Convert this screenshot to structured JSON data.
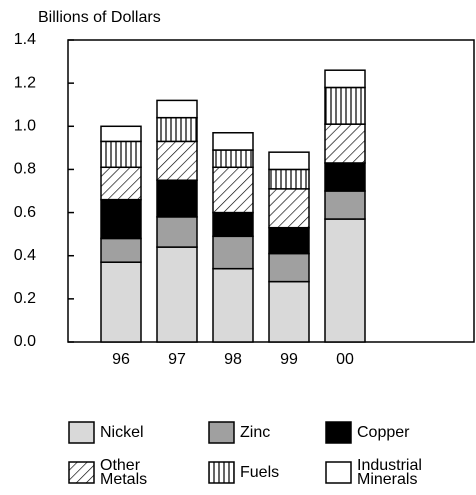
{
  "chart_data": {
    "type": "stacked_bar",
    "y_label": "Billions of Dollars",
    "categories": [
      "96",
      "97",
      "98",
      "99",
      "00"
    ],
    "ylim": [
      0,
      1.4
    ],
    "yticks": [
      {
        "value": 0,
        "label": "0.0"
      },
      0.2,
      0.4,
      0.6,
      0.8,
      {
        "value": 1,
        "label": "1.0"
      },
      1.2,
      1.4
    ],
    "series": [
      {
        "name": "Nickel",
        "color": "#d9d9d9",
        "pattern": "solid",
        "values": [
          0.37,
          0.44,
          0.34,
          0.28,
          0.57
        ]
      },
      {
        "name": "Zinc",
        "color": "#a0a0a0",
        "pattern": "solid",
        "values": [
          0.11,
          0.14,
          0.15,
          0.13,
          0.13
        ]
      },
      {
        "name": "Copper",
        "color": "#000000",
        "pattern": "solid",
        "values": [
          0.18,
          0.17,
          0.11,
          0.12,
          0.13
        ]
      },
      {
        "name": "Other Metals",
        "color": "#ffffff",
        "pattern": "diagonal",
        "values": [
          0.15,
          0.18,
          0.21,
          0.18,
          0.18
        ]
      },
      {
        "name": "Fuels",
        "color": "#ffffff",
        "pattern": "vertical",
        "values": [
          0.12,
          0.11,
          0.08,
          0.09,
          0.17
        ]
      },
      {
        "name": "Industrial Minerals",
        "color": "#ffffff",
        "pattern": "solid",
        "values": [
          0.07,
          0.08,
          0.08,
          0.08,
          0.08
        ]
      }
    ]
  }
}
